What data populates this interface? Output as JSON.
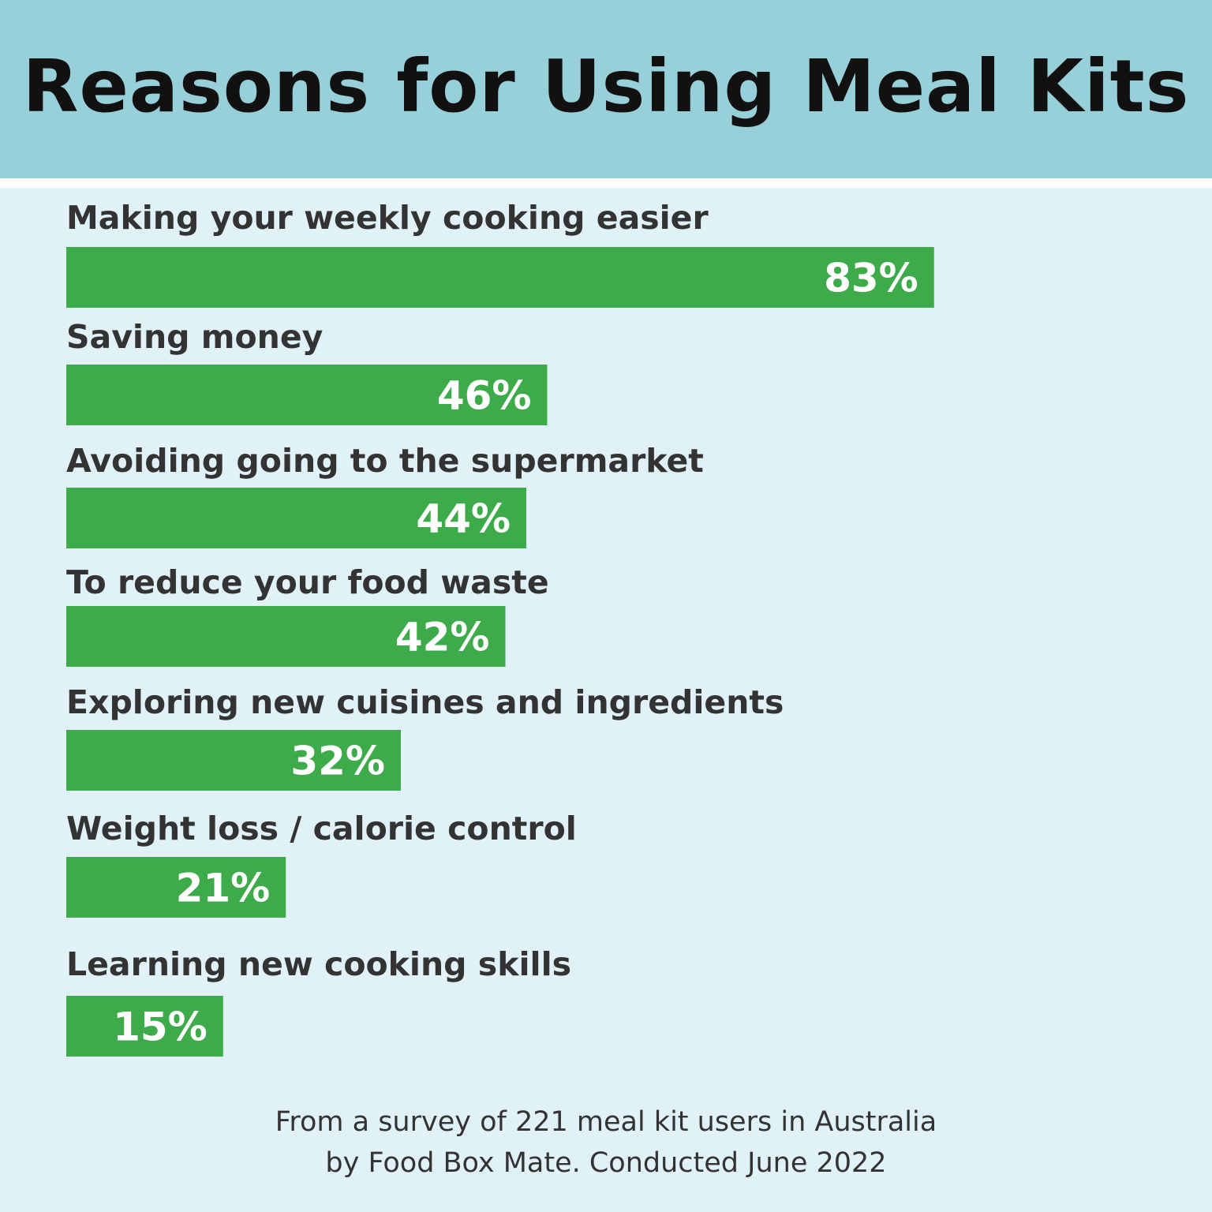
{
  "header": {
    "title": "Reasons for Using Meal Kits"
  },
  "colors": {
    "header_bg": "#98d0d9",
    "page_bg": "#e1f1f8",
    "bar": "#3dab49",
    "label_text": "#333333",
    "value_text": "#ffffff"
  },
  "chart_data": {
    "type": "bar",
    "orientation": "horizontal",
    "title": "Reasons for Using Meal Kits",
    "categories": [
      "Making your weekly cooking easier",
      "Saving money",
      "Avoiding going to the supermarket",
      "To reduce your food waste",
      "Exploring new cuisines and ingredients",
      "Weight loss / calorie control",
      "Learning new cooking skills"
    ],
    "values": [
      83,
      46,
      44,
      42,
      32,
      21,
      15
    ],
    "value_labels": [
      "83%",
      "46%",
      "44%",
      "42%",
      "32%",
      "21%",
      "15%"
    ],
    "unit": "%",
    "xlim": [
      0,
      100
    ],
    "grid": false,
    "legend": "none"
  },
  "footer": {
    "line1": "From a survey of 221 meal kit users in Australia",
    "line2": "by Food Box Mate. Conducted June 2022"
  }
}
